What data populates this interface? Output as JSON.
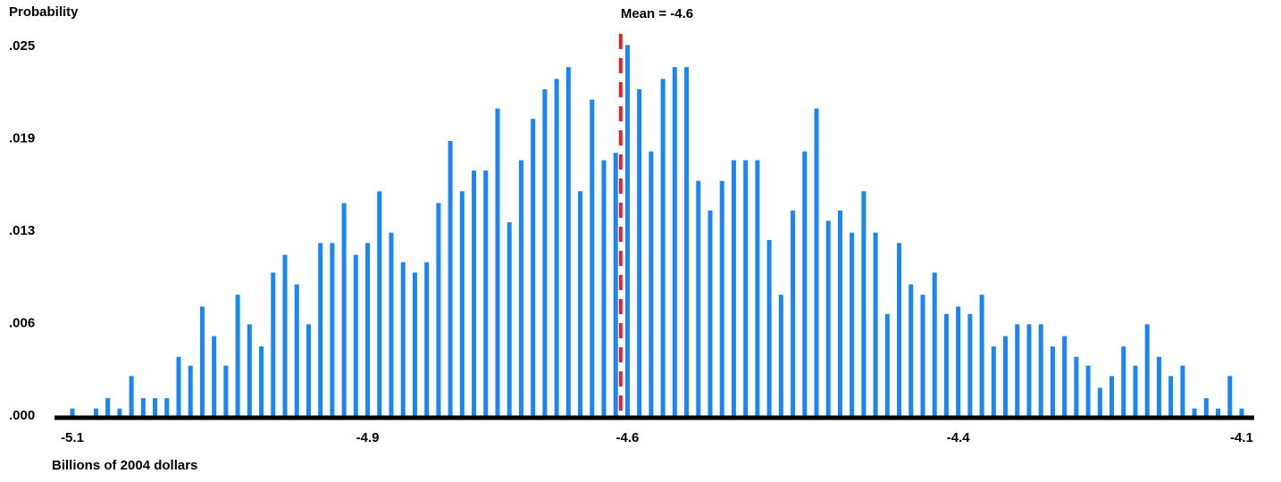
{
  "chart_data": {
    "type": "bar",
    "y_axis_label": "Probability",
    "x_axis_label": "Billions of 2004 dollars",
    "annotation": "Mean = -4.6",
    "mean_color": "#e8202a",
    "color": "#1a85f5",
    "ylim": [
      0,
      0.025
    ],
    "yticks": [
      {
        "value": 0,
        "label": ".000"
      },
      {
        "value": 0.00625,
        "label": ".006"
      },
      {
        "value": 0.0125,
        "label": ".013"
      },
      {
        "value": 0.01875,
        "label": ".019"
      },
      {
        "value": 0.025,
        "label": ".025"
      }
    ],
    "categories": [
      "-5.1",
      null,
      null,
      null,
      null,
      null,
      null,
      null,
      null,
      null,
      null,
      null,
      null,
      null,
      null,
      null,
      null,
      null,
      null,
      null,
      null,
      null,
      null,
      null,
      null,
      "-4.9",
      null,
      null,
      null,
      null,
      null,
      null,
      null,
      null,
      null,
      null,
      null,
      null,
      null,
      null,
      null,
      null,
      null,
      null,
      null,
      null,
      null,
      "-4.6",
      null,
      null,
      null,
      null,
      null,
      null,
      null,
      null,
      null,
      null,
      null,
      null,
      null,
      null,
      null,
      null,
      null,
      null,
      null,
      null,
      null,
      null,
      null,
      null,
      null,
      null,
      null,
      "-4.4",
      null,
      null,
      null,
      null,
      null,
      null,
      null,
      null,
      null,
      null,
      null,
      null,
      null,
      null,
      null,
      null,
      null,
      null,
      null,
      null,
      null,
      null,
      null,
      "-4.1"
    ],
    "values": [
      0.0005,
      0,
      0.0005,
      0.0012,
      0.0005,
      0.0027,
      0.0012,
      0.0012,
      0.0012,
      0.004,
      0.0034,
      0.0074,
      0.0054,
      0.0034,
      0.0082,
      0.0062,
      0.0047,
      0.0097,
      0.0109,
      0.0089,
      0.0062,
      0.0117,
      0.0117,
      0.0144,
      0.0109,
      0.0117,
      0.0152,
      0.0124,
      0.0104,
      0.0097,
      0.0104,
      0.0144,
      0.0186,
      0.0152,
      0.0166,
      0.0166,
      0.0208,
      0.0131,
      0.0173,
      0.0201,
      0.0221,
      0.0228,
      0.0236,
      0.0152,
      0.0214,
      0.0173,
      0.0178,
      0.0251,
      0.0221,
      0.0179,
      0.0228,
      0.0236,
      0.0236,
      0.0159,
      0.0139,
      0.0159,
      0.0173,
      0.0173,
      0.0173,
      0.0119,
      0.0082,
      0.0139,
      0.0179,
      0.0208,
      0.0132,
      0.0139,
      0.0124,
      0.0152,
      0.0124,
      0.0069,
      0.0117,
      0.0089,
      0.0082,
      0.0097,
      0.0069,
      0.0074,
      0.0069,
      0.0082,
      0.0047,
      0.0054,
      0.0062,
      0.0062,
      0.0062,
      0.0047,
      0.0054,
      0.004,
      0.0034,
      0.0019,
      0.0027,
      0.0047,
      0.0034,
      0.0062,
      0.004,
      0.0027,
      0.0034,
      0.0005,
      0.0012,
      0.0005,
      0.0027,
      0.0005
    ]
  }
}
